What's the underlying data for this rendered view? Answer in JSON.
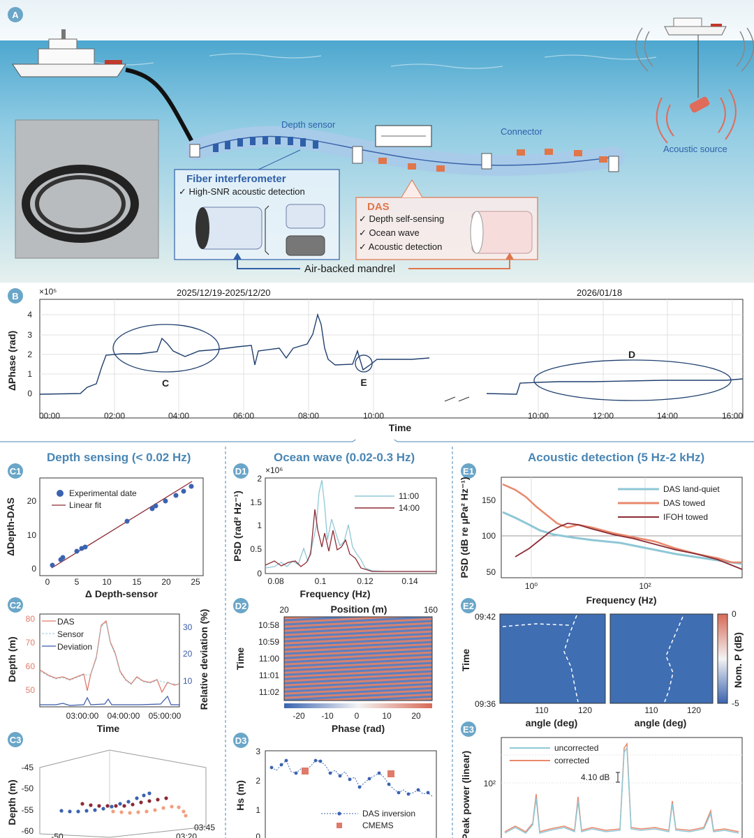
{
  "panel_a": {
    "badge": "A",
    "depth_sensor": "Depth sensor",
    "connector": "Connector",
    "acoustic_source": "Acoustic source",
    "fiber_interferometer": "Fiber interferometer",
    "fi_items": [
      "High-SNR acoustic detection"
    ],
    "das": "DAS",
    "das_items": [
      "Depth self-sensing",
      "Ocean wave",
      "Acoustic detection"
    ],
    "mandrel": "Air-backed mandrel",
    "colors": {
      "sea": "#cfe6f1",
      "das": "#e0764a",
      "fi": "#2f5fa8",
      "cable": "#a8cbea"
    }
  },
  "panel_b": {
    "badge": "B",
    "exponent": "×10⁵",
    "period_1": "2025/12/19-2025/12/20",
    "period_2": "2026/01/18",
    "ylabel": "ΔPhase (rad)",
    "xlabel": "Time",
    "yticks": [
      "0",
      "1",
      "2",
      "3",
      "4"
    ],
    "xticks_1": [
      "00:00",
      "02:00",
      "04:00",
      "06:00",
      "08:00",
      "10:00"
    ],
    "xticks_2": [
      "10:00",
      "12:00",
      "14:00",
      "16:00"
    ],
    "annotations": [
      "C",
      "E",
      "D"
    ]
  },
  "section_c": {
    "title": "Depth sensing (< 0.02 Hz)",
    "c1": {
      "badge": "C1",
      "ylabel": "ΔDepth-DAS",
      "xlabel": "Δ Depth-sensor",
      "legend": [
        "Experimental date",
        "Linear fit"
      ],
      "xticks": [
        "0",
        "5",
        "10",
        "15",
        "20",
        "25"
      ],
      "yticks": [
        "0",
        "10",
        "20"
      ]
    },
    "c2": {
      "badge": "C2",
      "ylabel_left": "Depth (m)",
      "ylabel_right": "Relative deviation (%)",
      "xlabel": "Time",
      "legend": [
        "DAS",
        "Sensor",
        "Deviation"
      ],
      "xticks": [
        "03:00:00",
        "04:00:00",
        "05:00:00"
      ],
      "yticks_left": [
        "50",
        "60",
        "70",
        "80"
      ],
      "yticks_right": [
        "10",
        "20",
        "30"
      ]
    },
    "c3": {
      "badge": "C3",
      "ylabel": "Depth (m)",
      "yticks": [
        "-45",
        "-50",
        "-55",
        "-60"
      ],
      "xtick": "-50",
      "t1": "03:45",
      "t2": "03:20"
    }
  },
  "section_d": {
    "title": "Ocean wave (0.02-0.3 Hz)",
    "d1": {
      "badge": "D1",
      "exponent": "×10⁶",
      "ylabel": "PSD (rad² Hz⁻¹)",
      "xlabel": "Frequency (Hz)",
      "legend": [
        "11:00",
        "14:00"
      ],
      "xticks": [
        "0.08",
        "0.1",
        "0.12",
        "0.14"
      ],
      "yticks": [
        "0",
        "0.5",
        "1",
        "1.5",
        "2"
      ]
    },
    "d2": {
      "badge": "D2",
      "title": "Position (m)",
      "pos_min": "20",
      "pos_max": "160",
      "ylabel": "Time",
      "yticks": [
        "10:58",
        "10:59",
        "11:00",
        "11:01",
        "11:02"
      ],
      "cbar_label": "Phase (rad)",
      "cbar_ticks": [
        "-20",
        "-10",
        "0",
        "10",
        "20"
      ]
    },
    "d3": {
      "badge": "D3",
      "ylabel": "Hs (m)",
      "yticks": [
        "0",
        "1",
        "2",
        "3"
      ],
      "legend": [
        "DAS inversion",
        "CMEMS"
      ]
    }
  },
  "section_e": {
    "title": "Acoustic detection (5 Hz-2 kHz)",
    "e1": {
      "badge": "E1",
      "ylabel": "PSD (dB re μPa² Hz⁻¹)",
      "xlabel": "Frequency (Hz)",
      "legend": [
        "DAS land-quiet",
        "DAS towed",
        "IFOH towed"
      ],
      "yticks": [
        "50",
        "100",
        "150"
      ],
      "xticks": [
        "10⁰",
        "10²"
      ]
    },
    "e2": {
      "badge": "E2",
      "ylabel": "Time",
      "t_top": "09:42",
      "t_bottom": "09:36",
      "xlabel": "angle (deg)",
      "xticks": [
        "110",
        "120"
      ],
      "cbar_label": "Nom. P (dB)",
      "cbar_ticks": [
        "0",
        "-5"
      ]
    },
    "e3": {
      "badge": "E3",
      "ylabel": "Peak power (linear)",
      "ytick": "10²",
      "legend": [
        "uncorrected",
        "corrected"
      ],
      "annotation": "4.10 dB"
    }
  }
}
